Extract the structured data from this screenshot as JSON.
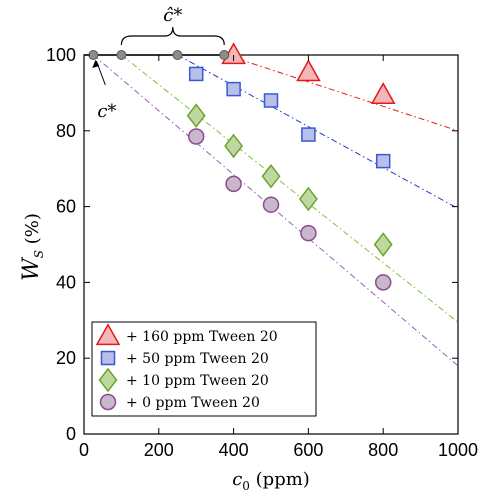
{
  "chart_data": {
    "type": "scatter",
    "title": "",
    "xlabel": "c0 (ppm)",
    "ylabel": "WS (%)",
    "xlim": [
      0,
      1000
    ],
    "ylim": [
      0,
      100
    ],
    "xticks": [
      0,
      200,
      400,
      600,
      800,
      1000
    ],
    "yticks": [
      0,
      20,
      40,
      60,
      80,
      100
    ],
    "grid": false,
    "legend_position": "bottom-left",
    "annotations": {
      "c_star": "c*",
      "c_hat_star": "ĉ*"
    },
    "baseline_points": {
      "x": [
        25,
        100,
        250,
        375
      ],
      "y": [
        100,
        100,
        100,
        100
      ],
      "color": "#8c8c8c"
    },
    "series": [
      {
        "name": "+ 160 ppm Tween 20",
        "marker": "triangle",
        "stroke": "#e31a1c",
        "fill": "#f4b6b6",
        "line_color": "#e31a1c",
        "x": [
          400,
          600,
          800
        ],
        "y": [
          100,
          95.5,
          89.5
        ],
        "fit_line": {
          "x": [
            380,
            1000
          ],
          "y": [
            100,
            80
          ]
        }
      },
      {
        "name": "+ 50 ppm Tween 20",
        "marker": "square",
        "stroke": "#3b57d4",
        "fill": "#b8bfe8",
        "line_color": "#1f3ad1",
        "x": [
          300,
          400,
          500,
          600,
          800
        ],
        "y": [
          95,
          91,
          88,
          79,
          72
        ],
        "fit_line": {
          "x": [
            250,
            1000
          ],
          "y": [
            100,
            59.5
          ]
        }
      },
      {
        "name": "+ 10 ppm Tween 20",
        "marker": "diamond",
        "stroke": "#6aa32b",
        "fill": "#bfd8a2",
        "line_color": "#7fbf3a",
        "x": [
          300,
          400,
          500,
          600,
          800
        ],
        "y": [
          84,
          76,
          68,
          62,
          50
        ],
        "fit_line": {
          "x": [
            100,
            1000
          ],
          "y": [
            100,
            29.5
          ]
        }
      },
      {
        "name": "+ 0 ppm Tween 20",
        "marker": "circle",
        "stroke": "#8a4e8f",
        "fill": "#c9b7cc",
        "line_color": "#9a5fc0",
        "x": [
          300,
          400,
          500,
          600,
          800
        ],
        "y": [
          78.5,
          66,
          60.5,
          53,
          40
        ],
        "fit_line": {
          "x": [
            25,
            1000
          ],
          "y": [
            100,
            18
          ]
        }
      }
    ]
  }
}
